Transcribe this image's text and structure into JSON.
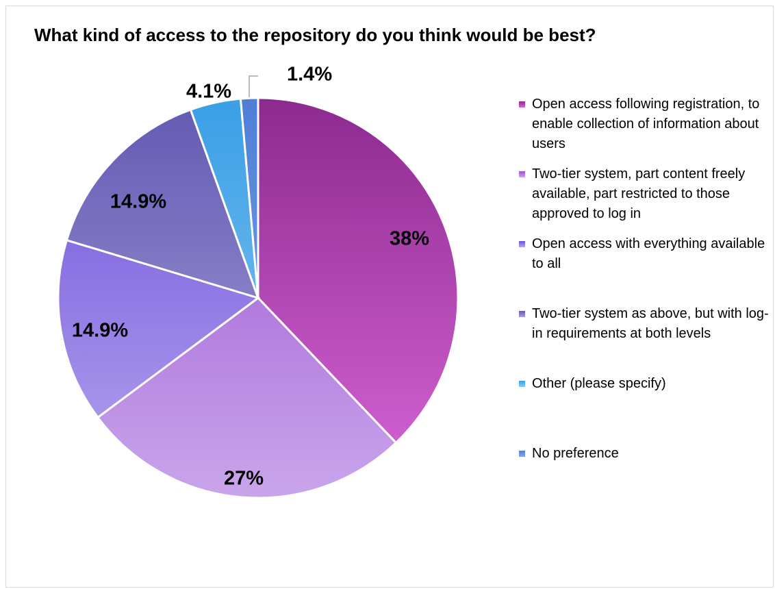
{
  "chart_data": {
    "type": "pie",
    "title": "What kind of access to the repository do you think would be best?",
    "slices": [
      {
        "label": "Open access following registration, to enable collection of information about users",
        "value": 38,
        "display": "38%",
        "color_top": "#8c2a8e",
        "color_bottom": "#d966d8"
      },
      {
        "label": "Two-tier system, part content freely available, part restricted to those approved to log in",
        "value": 27,
        "display": "27%",
        "color_top": "#9a4fd1",
        "color_bottom": "#c9a5eb"
      },
      {
        "label": "Open access with everything available to all",
        "value": 14.9,
        "display": "14.9%",
        "color_top": "#6d4fdb",
        "color_bottom": "#b5a6ee"
      },
      {
        "label": "Two-tier system as above, but with log-in requirements at both levels",
        "value": 14.9,
        "display": "14.9%",
        "color_top": "#6359b3",
        "color_bottom": "#a7a3da"
      },
      {
        "label": "Other (please specify)",
        "value": 4.1,
        "display": "4.1%",
        "color_top": "#3a9fe6",
        "color_bottom": "#8ecaf2"
      },
      {
        "label": "No preference",
        "value": 1.4,
        "display": "1.4%",
        "color_top": "#4f7fd6",
        "color_bottom": "#86a9e6"
      }
    ],
    "legend_position": "right"
  }
}
